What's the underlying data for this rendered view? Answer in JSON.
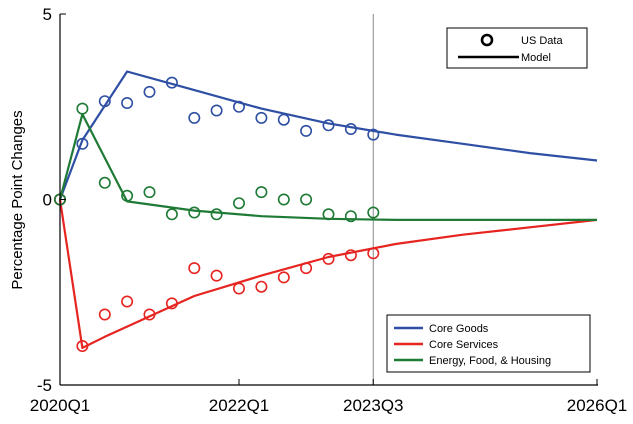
{
  "chart_data": {
    "type": "line",
    "ylabel": "Percentage Point Changes",
    "xlabel": "",
    "ylim": [
      -5,
      5
    ],
    "yticks": [
      5,
      0,
      -5
    ],
    "xlim": [
      0,
      24
    ],
    "xticks": [
      {
        "x": 0,
        "label": "2020Q1"
      },
      {
        "x": 8,
        "label": "2022Q1"
      },
      {
        "x": 14,
        "label": "2023Q3"
      },
      {
        "x": 24,
        "label": "2026Q1"
      }
    ],
    "vline_x": 14,
    "grid": false,
    "marker_legend": {
      "data_label": "US Data",
      "model_label": "Model",
      "placement": "top-right"
    },
    "series_legend_placement": "bottom-right",
    "series": [
      {
        "name": "Core Goods",
        "color": "#2e4fa3",
        "model": [
          [
            0,
            0
          ],
          [
            1,
            1.6
          ],
          [
            3,
            3.45
          ],
          [
            6,
            2.95
          ],
          [
            9,
            2.45
          ],
          [
            12,
            2.05
          ],
          [
            15,
            1.75
          ],
          [
            18,
            1.5
          ],
          [
            21,
            1.25
          ],
          [
            24,
            1.05
          ]
        ],
        "data": [
          [
            0,
            0
          ],
          [
            1,
            1.5
          ],
          [
            2,
            2.65
          ],
          [
            3,
            2.6
          ],
          [
            4,
            2.9
          ],
          [
            5,
            3.15
          ],
          [
            6,
            2.2
          ],
          [
            7,
            2.4
          ],
          [
            8,
            2.5
          ],
          [
            9,
            2.2
          ],
          [
            10,
            2.15
          ],
          [
            11,
            1.85
          ],
          [
            12,
            2.0
          ],
          [
            13,
            1.9
          ],
          [
            14,
            1.75
          ]
        ]
      },
      {
        "name": "Core Services",
        "color": "#e62420",
        "model": [
          [
            0,
            0
          ],
          [
            1,
            -4.0
          ],
          [
            2,
            -3.7
          ],
          [
            4,
            -3.15
          ],
          [
            6,
            -2.6
          ],
          [
            9,
            -2.05
          ],
          [
            12,
            -1.55
          ],
          [
            15,
            -1.2
          ],
          [
            18,
            -0.95
          ],
          [
            21,
            -0.75
          ],
          [
            24,
            -0.55
          ]
        ],
        "data": [
          [
            0,
            0
          ],
          [
            1,
            -3.95
          ],
          [
            2,
            -3.1
          ],
          [
            3,
            -2.75
          ],
          [
            4,
            -3.1
          ],
          [
            5,
            -2.8
          ],
          [
            6,
            -1.85
          ],
          [
            7,
            -2.05
          ],
          [
            8,
            -2.4
          ],
          [
            9,
            -2.35
          ],
          [
            10,
            -2.1
          ],
          [
            11,
            -1.85
          ],
          [
            12,
            -1.6
          ],
          [
            13,
            -1.5
          ],
          [
            14,
            -1.45
          ]
        ]
      },
      {
        "name": "Energy, Food, & Housing",
        "color": "#1e7a35",
        "model": [
          [
            0,
            0
          ],
          [
            1,
            2.3
          ],
          [
            3,
            -0.05
          ],
          [
            6,
            -0.3
          ],
          [
            9,
            -0.45
          ],
          [
            12,
            -0.52
          ],
          [
            15,
            -0.55
          ],
          [
            18,
            -0.55
          ],
          [
            21,
            -0.55
          ],
          [
            24,
            -0.55
          ]
        ],
        "data": [
          [
            0,
            0
          ],
          [
            1,
            2.45
          ],
          [
            2,
            0.45
          ],
          [
            3,
            0.1
          ],
          [
            4,
            0.2
          ],
          [
            5,
            -0.4
          ],
          [
            6,
            -0.35
          ],
          [
            7,
            -0.4
          ],
          [
            8,
            -0.1
          ],
          [
            9,
            0.2
          ],
          [
            10,
            0.0
          ],
          [
            11,
            0.0
          ],
          [
            12,
            -0.4
          ],
          [
            13,
            -0.45
          ],
          [
            14,
            -0.35
          ]
        ]
      }
    ]
  }
}
